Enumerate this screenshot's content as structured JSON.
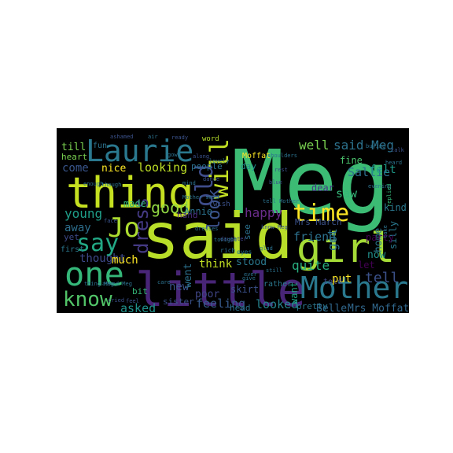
{
  "word_cloud": {
    "background": "#000000",
    "words": [
      {
        "text": "Meg",
        "color": "#3cbb75"
      },
      {
        "text": "said",
        "color": "#b8de29"
      },
      {
        "text": "little",
        "color": "#482576"
      },
      {
        "text": "thing",
        "color": "#c5e021"
      },
      {
        "text": "girl",
        "color": "#a5db36"
      },
      {
        "text": "Laurie",
        "color": "#2a788e"
      },
      {
        "text": "Mother",
        "color": "#2a788e"
      },
      {
        "text": "one",
        "color": "#35b779"
      },
      {
        "text": "Jo",
        "color": "#addc30"
      },
      {
        "text": "say",
        "color": "#22a884"
      },
      {
        "text": "know",
        "color": "#52c569"
      },
      {
        "text": "old",
        "color": "#3e4c8a"
      },
      {
        "text": "will",
        "color": "#c2df23"
      },
      {
        "text": "time",
        "color": "#fde725"
      },
      {
        "text": "well",
        "color": "#7ad151"
      },
      {
        "text": "said Meg",
        "color": "#2c728e"
      },
      {
        "text": "dress",
        "color": "#443a83"
      },
      {
        "text": "look",
        "color": "#3b528b"
      },
      {
        "text": "good",
        "color": "#90d743"
      },
      {
        "text": "got",
        "color": "#2c728e"
      },
      {
        "text": "young",
        "color": "#1f9e89"
      },
      {
        "text": "tell",
        "color": "#3b528b"
      },
      {
        "text": "looking",
        "color": "#bddf26"
      },
      {
        "text": "happy",
        "color": "#6a2d8b"
      },
      {
        "text": "friend",
        "color": "#2c728e"
      },
      {
        "text": "quite",
        "color": "#29af7f"
      },
      {
        "text": "looked",
        "color": "#26828e"
      },
      {
        "text": "feeling",
        "color": "#375a8c"
      },
      {
        "text": "asked",
        "color": "#20928c"
      },
      {
        "text": "thought",
        "color": "#3e4989"
      },
      {
        "text": "away",
        "color": "#2e6f8e"
      },
      {
        "text": "much",
        "color": "#fde725"
      },
      {
        "text": "Belle",
        "color": "#31688e"
      },
      {
        "text": "Mrs Moffat",
        "color": "#31688e"
      },
      {
        "text": "Mrs March",
        "color": "#3b528b"
      },
      {
        "text": "Sallie",
        "color": "#2d708e"
      },
      {
        "text": "saw",
        "color": "#35b779"
      },
      {
        "text": "dear",
        "color": "#443983"
      },
      {
        "text": "felt",
        "color": "#1e9b8a"
      },
      {
        "text": "fine",
        "color": "#4ac16d"
      },
      {
        "text": "Annie",
        "color": "#2c728e"
      },
      {
        "text": "made",
        "color": "#35b779"
      },
      {
        "text": "new",
        "color": "#3b528b"
      },
      {
        "text": "went",
        "color": "#2c728e"
      },
      {
        "text": "poor",
        "color": "#404688"
      },
      {
        "text": "think",
        "color": "#c2df23"
      },
      {
        "text": "stood",
        "color": "#2a788e"
      },
      {
        "text": "home",
        "color": "#2a788e"
      },
      {
        "text": "now",
        "color": "#21918c"
      },
      {
        "text": "put",
        "color": "#fde725"
      },
      {
        "text": "want",
        "color": "#20a386"
      },
      {
        "text": "come",
        "color": "#39568c"
      },
      {
        "text": "till",
        "color": "#7ad151"
      },
      {
        "text": "nice",
        "color": "#fde725"
      },
      {
        "text": "silly",
        "color": "#2a788e"
      },
      {
        "text": "party",
        "color": "#440154"
      },
      {
        "text": "kind",
        "color": "#2a788e"
      },
      {
        "text": "let",
        "color": "#440154"
      },
      {
        "text": "pretty",
        "color": "#2a788e"
      },
      {
        "text": "skirt",
        "color": "#3b528b"
      },
      {
        "text": "head",
        "color": "#2c728e"
      },
      {
        "text": "sister",
        "color": "#3b528b"
      },
      {
        "text": "bit",
        "color": "#35b779"
      },
      {
        "text": "hand",
        "color": "#482878"
      },
      {
        "text": "see",
        "color": "#2c728e"
      },
      {
        "text": "day",
        "color": "#21918c"
      },
      {
        "text": "people",
        "color": "#2c728e"
      },
      {
        "text": "heart",
        "color": "#7ad151"
      },
      {
        "text": "yet",
        "color": "#3e4a89"
      },
      {
        "text": "first",
        "color": "#2a788e"
      },
      {
        "text": "told",
        "color": "#414487"
      },
      {
        "text": "rather",
        "color": "#2a788e"
      },
      {
        "text": "Moffat",
        "color": "#fde725"
      },
      {
        "text": "word",
        "color": "#b5de2b"
      },
      {
        "text": "wish",
        "color": "#3b528b"
      },
      {
        "text": "daughter",
        "color": "#404688"
      },
      {
        "text": "eyes",
        "color": "#2a788e"
      },
      {
        "text": "rich",
        "color": "#2c728e"
      },
      {
        "text": "ashamed",
        "color": "#3b528b"
      },
      {
        "text": "air",
        "color": "#2c728e"
      },
      {
        "text": "ready",
        "color": "#3b528b"
      },
      {
        "text": "gown",
        "color": "#2c728e"
      },
      {
        "text": "fun",
        "color": "#2c728e"
      },
      {
        "text": "cried",
        "color": "#3b528b"
      },
      {
        "text": "evening",
        "color": "#2c728e"
      },
      {
        "text": "replied",
        "color": "#35b779"
      },
      {
        "text": "heard",
        "color": "#2c728e"
      },
      {
        "text": "buying",
        "color": "#2c728e"
      },
      {
        "text": "though",
        "color": "#2c728e"
      },
      {
        "text": "enough",
        "color": "#2c728e"
      },
      {
        "text": "along",
        "color": "#3b528b"
      },
      {
        "text": "tonight",
        "color": "#2c728e"
      },
      {
        "text": "dance",
        "color": "#3b528b"
      },
      {
        "text": "take",
        "color": "#2c728e"
      },
      {
        "text": "ever",
        "color": "#2c728e"
      },
      {
        "text": "face",
        "color": "#3b528b"
      },
      {
        "text": "shoulders",
        "color": "#2c728e"
      },
      {
        "text": "care",
        "color": "#2c728e"
      },
      {
        "text": "feel",
        "color": "#3b528b"
      },
      {
        "text": "asked Meg",
        "color": "#2c728e"
      },
      {
        "text": "dresses",
        "color": "#2c728e"
      },
      {
        "text": "lovely",
        "color": "#2c728e"
      },
      {
        "text": "rest",
        "color": "#3b528b"
      },
      {
        "text": "blue",
        "color": "#3b528b"
      },
      {
        "text": "mind",
        "color": "#2c728e"
      },
      {
        "text": "glad",
        "color": "#2c728e"
      },
      {
        "text": "Mother said",
        "color": "#2c728e"
      },
      {
        "text": "know Meg",
        "color": "#3b528b"
      },
      {
        "text": "tell Mother",
        "color": "#2c728e"
      },
      {
        "text": "give",
        "color": "#2c728e"
      },
      {
        "text": "talk",
        "color": "#3b528b"
      },
      {
        "text": "still",
        "color": "#2c728e"
      },
      {
        "text": "thing Meg",
        "color": "#2c728e"
      }
    ]
  }
}
